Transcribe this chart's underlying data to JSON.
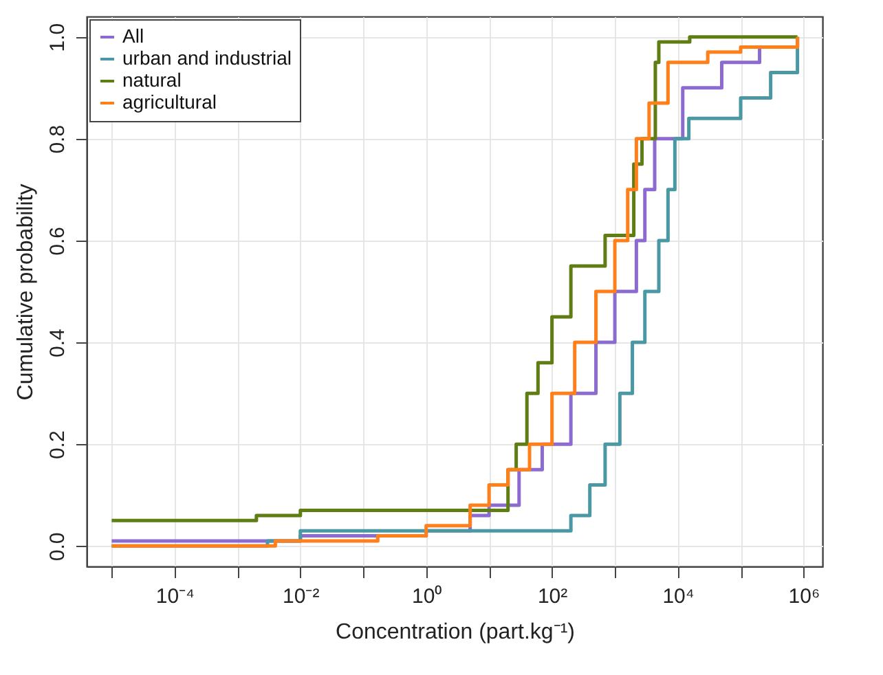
{
  "chart_data": {
    "type": "step",
    "xlabel": "Concentration (part.kg⁻¹)",
    "ylabel": "Cumulative probability",
    "log": "x",
    "grid": true,
    "legend": "top left",
    "xlim": [
      4e-06,
      2000000
    ],
    "ylim": [
      -0.04,
      1.04
    ],
    "xticks": [
      {
        "value": 1e-05,
        "label": null
      },
      {
        "value": 0.0001,
        "label": "10⁻⁴"
      },
      {
        "value": 0.001,
        "label": null
      },
      {
        "value": 0.01,
        "label": "10⁻²"
      },
      {
        "value": 0.1,
        "label": null
      },
      {
        "value": 1,
        "label": "10⁰"
      },
      {
        "value": 10,
        "label": null
      },
      {
        "value": 100,
        "label": "10²"
      },
      {
        "value": 1000,
        "label": null
      },
      {
        "value": 10000,
        "label": "10⁴"
      },
      {
        "value": 100000,
        "label": null
      },
      {
        "value": 1000000,
        "label": "10⁶"
      }
    ],
    "yticks": [
      {
        "value": 0,
        "label": "0.0"
      },
      0.2,
      0.4,
      0.6,
      0.8,
      {
        "value": 1,
        "label": "1.0"
      }
    ],
    "series": [
      {
        "name": "All",
        "color": "#8c6bd0",
        "x": [
          1e-05,
          0.005,
          0.01,
          0.2,
          1,
          5,
          10,
          30,
          70,
          200,
          500,
          1000,
          2200,
          3000,
          4300,
          12000,
          50000,
          200000,
          800000
        ],
        "values": [
          0.01,
          0.01,
          0.02,
          0.02,
          0.03,
          0.06,
          0.08,
          0.15,
          0.2,
          0.3,
          0.4,
          0.5,
          0.6,
          0.7,
          0.8,
          0.9,
          0.95,
          0.98,
          1.0
        ]
      },
      {
        "name": "urban and industrial",
        "color": "#4a98a3",
        "x": [
          1e-05,
          0.003,
          0.01,
          100,
          200,
          400,
          700,
          1200,
          1900,
          3000,
          5000,
          7000,
          9000,
          15000,
          100000,
          300000,
          800000
        ],
        "values": [
          0.0,
          0.01,
          0.03,
          0.03,
          0.06,
          0.12,
          0.2,
          0.3,
          0.4,
          0.5,
          0.6,
          0.7,
          0.8,
          0.84,
          0.88,
          0.93,
          1.0
        ]
      },
      {
        "name": "natural",
        "color": "#5e7d12",
        "x": [
          1e-05,
          0.002,
          0.01,
          14,
          20,
          27,
          40,
          60,
          100,
          200,
          700,
          1300,
          2000,
          2700,
          4400,
          5000,
          15000,
          15500,
          800000
        ],
        "values": [
          0.05,
          0.06,
          0.07,
          0.07,
          0.15,
          0.2,
          0.3,
          0.36,
          0.45,
          0.55,
          0.61,
          0.61,
          0.75,
          0.8,
          0.95,
          0.99,
          0.99,
          1.0,
          1.0
        ]
      },
      {
        "name": "agricultural",
        "color": "#ff7f1a",
        "x": [
          1e-05,
          0.004,
          0.17,
          1,
          5,
          10,
          20,
          44,
          100,
          230,
          500,
          1000,
          1600,
          2200,
          3500,
          7000,
          30000,
          100000,
          800000
        ],
        "values": [
          0.0,
          0.01,
          0.02,
          0.04,
          0.08,
          0.12,
          0.15,
          0.2,
          0.3,
          0.4,
          0.5,
          0.6,
          0.7,
          0.8,
          0.87,
          0.95,
          0.97,
          0.98,
          1.0
        ]
      }
    ]
  }
}
